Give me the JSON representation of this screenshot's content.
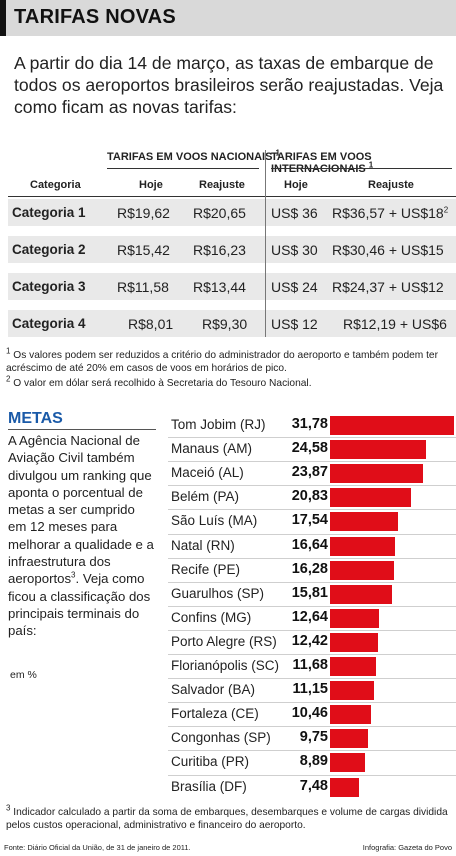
{
  "title": "TARIFAS NOVAS",
  "intro": "A partir do dia 14 de março, as taxas de embarque de todos os aeroportos brasileiros serão reajustadas. Veja como ficam as novas tarifas:",
  "table": {
    "group_nacionais": "TARIFAS EM VOOS NACIONAIS",
    "group_nacionais_mark": "1",
    "group_internacionais": "TARIFAS EM VOOS INTERNACIONAIS",
    "group_internacionais_mark": "1",
    "col_categoria": "Categoria",
    "col_hoje": "Hoje",
    "col_reajuste": "Reajuste",
    "rows": [
      {
        "cat": "Categoria 1",
        "nac_hoje": "R$19,62",
        "nac_reaj": "R$20,65",
        "int_hoje": "US$ 36",
        "int_reaj": "R$36,57 + US$18",
        "int_reaj_mark": "2"
      },
      {
        "cat": "Categoria 2",
        "nac_hoje": "R$15,42",
        "nac_reaj": "R$16,23",
        "int_hoje": "US$ 30",
        "int_reaj": "R$30,46 + US$15",
        "int_reaj_mark": ""
      },
      {
        "cat": "Categoria 3",
        "nac_hoje": "R$11,58",
        "nac_reaj": "R$13,44",
        "int_hoje": "US$ 24",
        "int_reaj": "R$24,37 + US$12",
        "int_reaj_mark": ""
      },
      {
        "cat": "Categoria 4",
        "nac_hoje": "R$8,01",
        "nac_reaj": "R$9,30",
        "int_hoje": "US$ 12",
        "int_reaj": "R$12,19 + US$6",
        "int_reaj_mark": ""
      }
    ]
  },
  "footnotes": {
    "fn1_mark": "1",
    "fn1": "Os valores podem ser reduzidos a critério do administrador do aeroporto e também podem ter acréscimo de até 20% em casos de voos em horários de pico.",
    "fn2_mark": "2",
    "fn2": "O valor em dólar será recolhido à Secretaria do Tesouro Nacional.",
    "fn3_mark": "3",
    "fn3": "Indicador calculado a partir da soma de embarques, desembarques e volume de cargas dividida pelos custos operacional, administrativo e financeiro do aeroporto."
  },
  "metas": {
    "title": "METAS",
    "text_before": "A Agência Nacional de Aviação Civil também divulgou um ranking que aponta o porcentual de metas a ser cumprido em 12 meses para melhorar a qualidade e a infraestrutura dos aeroportos",
    "text_mark": "3",
    "text_after": ". Veja como ficou a classificação dos principais terminais do país:",
    "unit": "em %"
  },
  "source": "Fonte: Diário Oficial da União, de 31 de janeiro de 2011.",
  "credit": "Infografia: Gazeta do Povo",
  "colors": {
    "bar": "#e00d18",
    "metas_title": "#1a5aa8",
    "title_bg": "#d9d9d9",
    "row_bg": "#e9e9e9"
  },
  "chart_data": {
    "type": "bar",
    "orientation": "horizontal",
    "unit": "em %",
    "categories": [
      "Tom Jobim (RJ)",
      "Manaus (AM)",
      "Maceió (AL)",
      "Belém (PA)",
      "São Luís (MA)",
      "Natal (RN)",
      "Recife (PE)",
      "Guarulhos (SP)",
      "Confins (MG)",
      "Porto Alegre (RS)",
      "Florianópolis (SC)",
      "Salvador (BA)",
      "Fortaleza (CE)",
      "Congonhas (SP)",
      "Curitiba (PR)",
      "Brasília (DF)"
    ],
    "value_labels": [
      "31,78",
      "24,58",
      "23,87",
      "20,83",
      "17,54",
      "16,64",
      "16,28",
      "15,81",
      "12,64",
      "12,42",
      "11,68",
      "11,15",
      "10,46",
      "9,75",
      "8,89",
      "7,48"
    ],
    "values": [
      31.78,
      24.58,
      23.87,
      20.83,
      17.54,
      16.64,
      16.28,
      15.81,
      12.64,
      12.42,
      11.68,
      11.15,
      10.46,
      9.75,
      8.89,
      7.48
    ],
    "xlim": [
      0,
      31.78
    ]
  }
}
